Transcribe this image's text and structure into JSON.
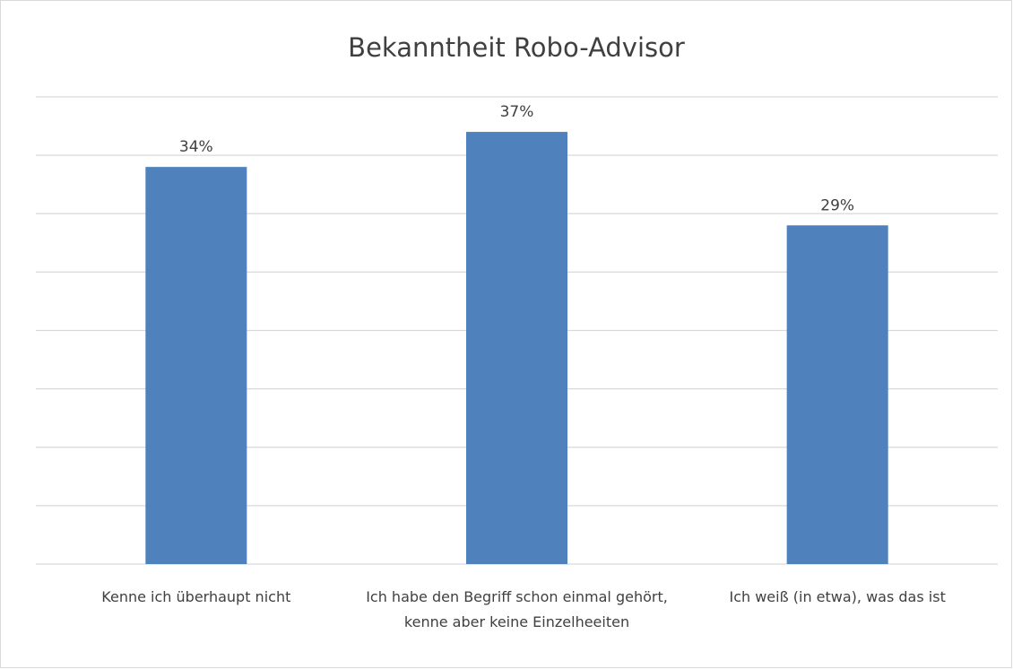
{
  "chart_data": {
    "type": "bar",
    "title": "Bekanntheit Robo-Advisor",
    "categories": [
      "Kenne ich überhaupt nicht",
      "Ich habe den Begriff schon einmal gehört, kenne aber keine Einzelheeiten",
      "Ich weiß (in etwa), was das ist"
    ],
    "values": [
      34,
      37,
      29
    ],
    "value_labels": [
      "34%",
      "37%",
      "29%"
    ],
    "color": "#4f81bd",
    "ylim": [
      0,
      40
    ],
    "yticks": [
      0,
      5,
      10,
      15,
      20,
      25,
      30,
      35,
      40
    ],
    "grid": true
  }
}
